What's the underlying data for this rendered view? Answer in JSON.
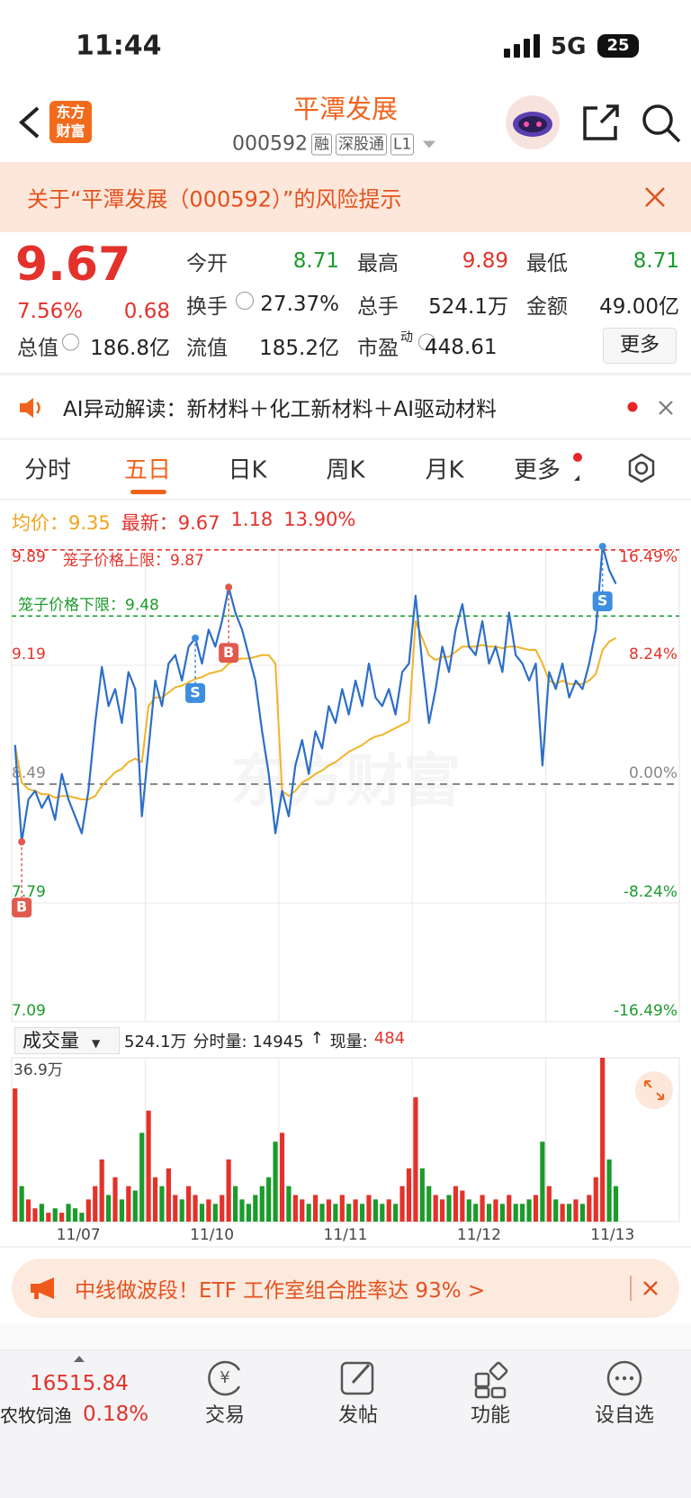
{
  "status": {
    "time": "11:44",
    "network": "5G",
    "battery": "25"
  },
  "header": {
    "logo": [
      "东方",
      "财富"
    ],
    "title": "平潭发展",
    "code": "000592",
    "tags": [
      "融",
      "深股通",
      "L1"
    ]
  },
  "alert": {
    "text": "关于“平潭发展（000592）”的风险提示"
  },
  "quote": {
    "price": "9.67",
    "change_pct": "7.56%",
    "change": "0.68",
    "fields": [
      {
        "label": "今开",
        "value": "8.71"
      },
      {
        "label": "最高",
        "value": "9.89"
      },
      {
        "label": "最低",
        "value": "8.71"
      },
      {
        "label": "换手",
        "value": "27.37%"
      },
      {
        "label": "总手",
        "value": "524.1万"
      },
      {
        "label": "金额",
        "value": "49.00亿"
      },
      {
        "label": "总值",
        "value": "186.8亿"
      },
      {
        "label": "流值",
        "value": "185.2亿"
      },
      {
        "label": "市盈",
        "sup": "动",
        "value": "448.61"
      }
    ],
    "more": "更多"
  },
  "ai_banner": {
    "text": "AI异动解读：新材料＋化工新材料＋AI驱动材料"
  },
  "tabs": [
    "分时",
    "五日",
    "日K",
    "周K",
    "月K",
    "更多"
  ],
  "stats": {
    "avg_label": "均价：",
    "avg": "9.35",
    "last_label": "最新：",
    "last": "9.67",
    "change": "1.18",
    "change_pct": "13.90%"
  },
  "chart": {
    "watermark": "东方财富",
    "ylim": [
      7.09,
      9.89
    ],
    "yticks": [
      9.89,
      9.19,
      8.49,
      7.79,
      7.09
    ],
    "y2lim": [
      -16.49,
      16.49
    ],
    "y2ticks": [
      {
        "value": 16.49,
        "label": "16.49%"
      },
      {
        "value": 8.24,
        "label": "8.24%"
      },
      {
        "value": 0,
        "label": "0.00%"
      },
      {
        "value": -8.24,
        "label": "-8.24%"
      },
      {
        "value": -16.49,
        "label": "-16.49%"
      }
    ],
    "prev_close": 8.49,
    "cage_upper": {
      "label": "笼子价格上限：",
      "value": 9.87
    },
    "cage_lower": {
      "label": "笼子价格下限：",
      "value": 9.48
    },
    "days": [
      "11/07",
      "11/10",
      "11/11",
      "11/12",
      "11/13"
    ],
    "price": [
      8.72,
      8.15,
      8.4,
      8.45,
      8.35,
      8.42,
      8.28,
      8.55,
      8.4,
      8.3,
      8.2,
      8.45,
      8.85,
      9.18,
      8.95,
      9.05,
      8.85,
      9.15,
      9.05,
      8.3,
      8.7,
      9.1,
      8.95,
      9.2,
      9.25,
      9.1,
      9.3,
      9.35,
      9.2,
      9.4,
      9.3,
      9.45,
      9.65,
      9.5,
      9.4,
      9.25,
      9.1,
      8.8,
      8.55,
      8.2,
      8.45,
      8.3,
      8.6,
      8.75,
      8.55,
      8.8,
      8.7,
      8.95,
      8.85,
      9.05,
      8.9,
      9.1,
      8.95,
      9.2,
      9.0,
      8.95,
      9.05,
      8.9,
      9.15,
      9.2,
      9.6,
      9.2,
      8.85,
      9.05,
      9.3,
      9.15,
      9.4,
      9.55,
      9.3,
      9.25,
      9.45,
      9.2,
      9.3,
      9.15,
      9.5,
      9.25,
      9.2,
      9.1,
      9.2,
      8.6,
      9.15,
      9.05,
      9.2,
      9.0,
      9.1,
      9.05,
      9.2,
      9.4,
      9.89,
      9.75,
      9.67
    ],
    "avg": [
      8.72,
      8.5,
      8.46,
      8.45,
      8.43,
      8.43,
      8.41,
      8.42,
      8.42,
      8.41,
      8.4,
      8.4,
      8.42,
      8.48,
      8.52,
      8.56,
      8.58,
      8.62,
      8.64,
      8.62,
      8.95,
      9.0,
      9.0,
      9.03,
      9.06,
      9.07,
      9.09,
      9.11,
      9.12,
      9.14,
      9.15,
      9.16,
      9.2,
      9.22,
      9.23,
      9.23,
      9.24,
      9.25,
      9.25,
      9.2,
      8.45,
      8.42,
      8.45,
      8.5,
      8.52,
      8.55,
      8.57,
      8.6,
      8.62,
      8.65,
      8.68,
      8.7,
      8.72,
      8.75,
      8.77,
      8.78,
      8.8,
      8.82,
      8.84,
      8.86,
      9.45,
      9.35,
      9.25,
      9.22,
      9.24,
      9.24,
      9.27,
      9.3,
      9.3,
      9.3,
      9.31,
      9.3,
      9.3,
      9.29,
      9.3,
      9.3,
      9.29,
      9.28,
      9.28,
      9.2,
      9.1,
      9.08,
      9.1,
      9.08,
      9.08,
      9.08,
      9.1,
      9.14,
      9.28,
      9.33,
      9.35
    ],
    "trades": [
      {
        "label": "B",
        "index": 1
      },
      {
        "label": "S",
        "index": 27
      },
      {
        "label": "B",
        "index": 32
      },
      {
        "label": "S",
        "index": 88
      }
    ]
  },
  "volume": {
    "label": "成交量",
    "total": "524.1万",
    "tick_label": "分时量: 14945",
    "arrow": "↑",
    "now_label": "现量:",
    "now": "484",
    "ylim": [
      0,
      36.9
    ],
    "yticks": [
      {
        "value": 36.9,
        "label": "36.9万"
      }
    ],
    "values": [
      30,
      8,
      5,
      3,
      4,
      2,
      3,
      2,
      4,
      3,
      2,
      5,
      8,
      14,
      6,
      10,
      5,
      8,
      7,
      20,
      25,
      10,
      8,
      12,
      6,
      5,
      8,
      6,
      4,
      5,
      4,
      6,
      14,
      8,
      5,
      4,
      6,
      8,
      10,
      18,
      20,
      8,
      6,
      5,
      4,
      6,
      4,
      5,
      4,
      6,
      4,
      5,
      4,
      6,
      5,
      4,
      5,
      4,
      8,
      12,
      28,
      12,
      8,
      6,
      5,
      6,
      8,
      7,
      5,
      4,
      6,
      4,
      5,
      4,
      6,
      4,
      4,
      5,
      6,
      18,
      8,
      5,
      4,
      4,
      5,
      4,
      6,
      10,
      36.9,
      14,
      8
    ]
  },
  "promo": {
    "text": "中线做波段！ETF 工作室组合胜率达 93% >"
  },
  "bottom_bar": {
    "index_value": "16515.84",
    "index_name": "农牧饲渔",
    "index_change": "0.18%",
    "items": [
      "交易",
      "发帖",
      "功能",
      "设自选"
    ]
  }
}
